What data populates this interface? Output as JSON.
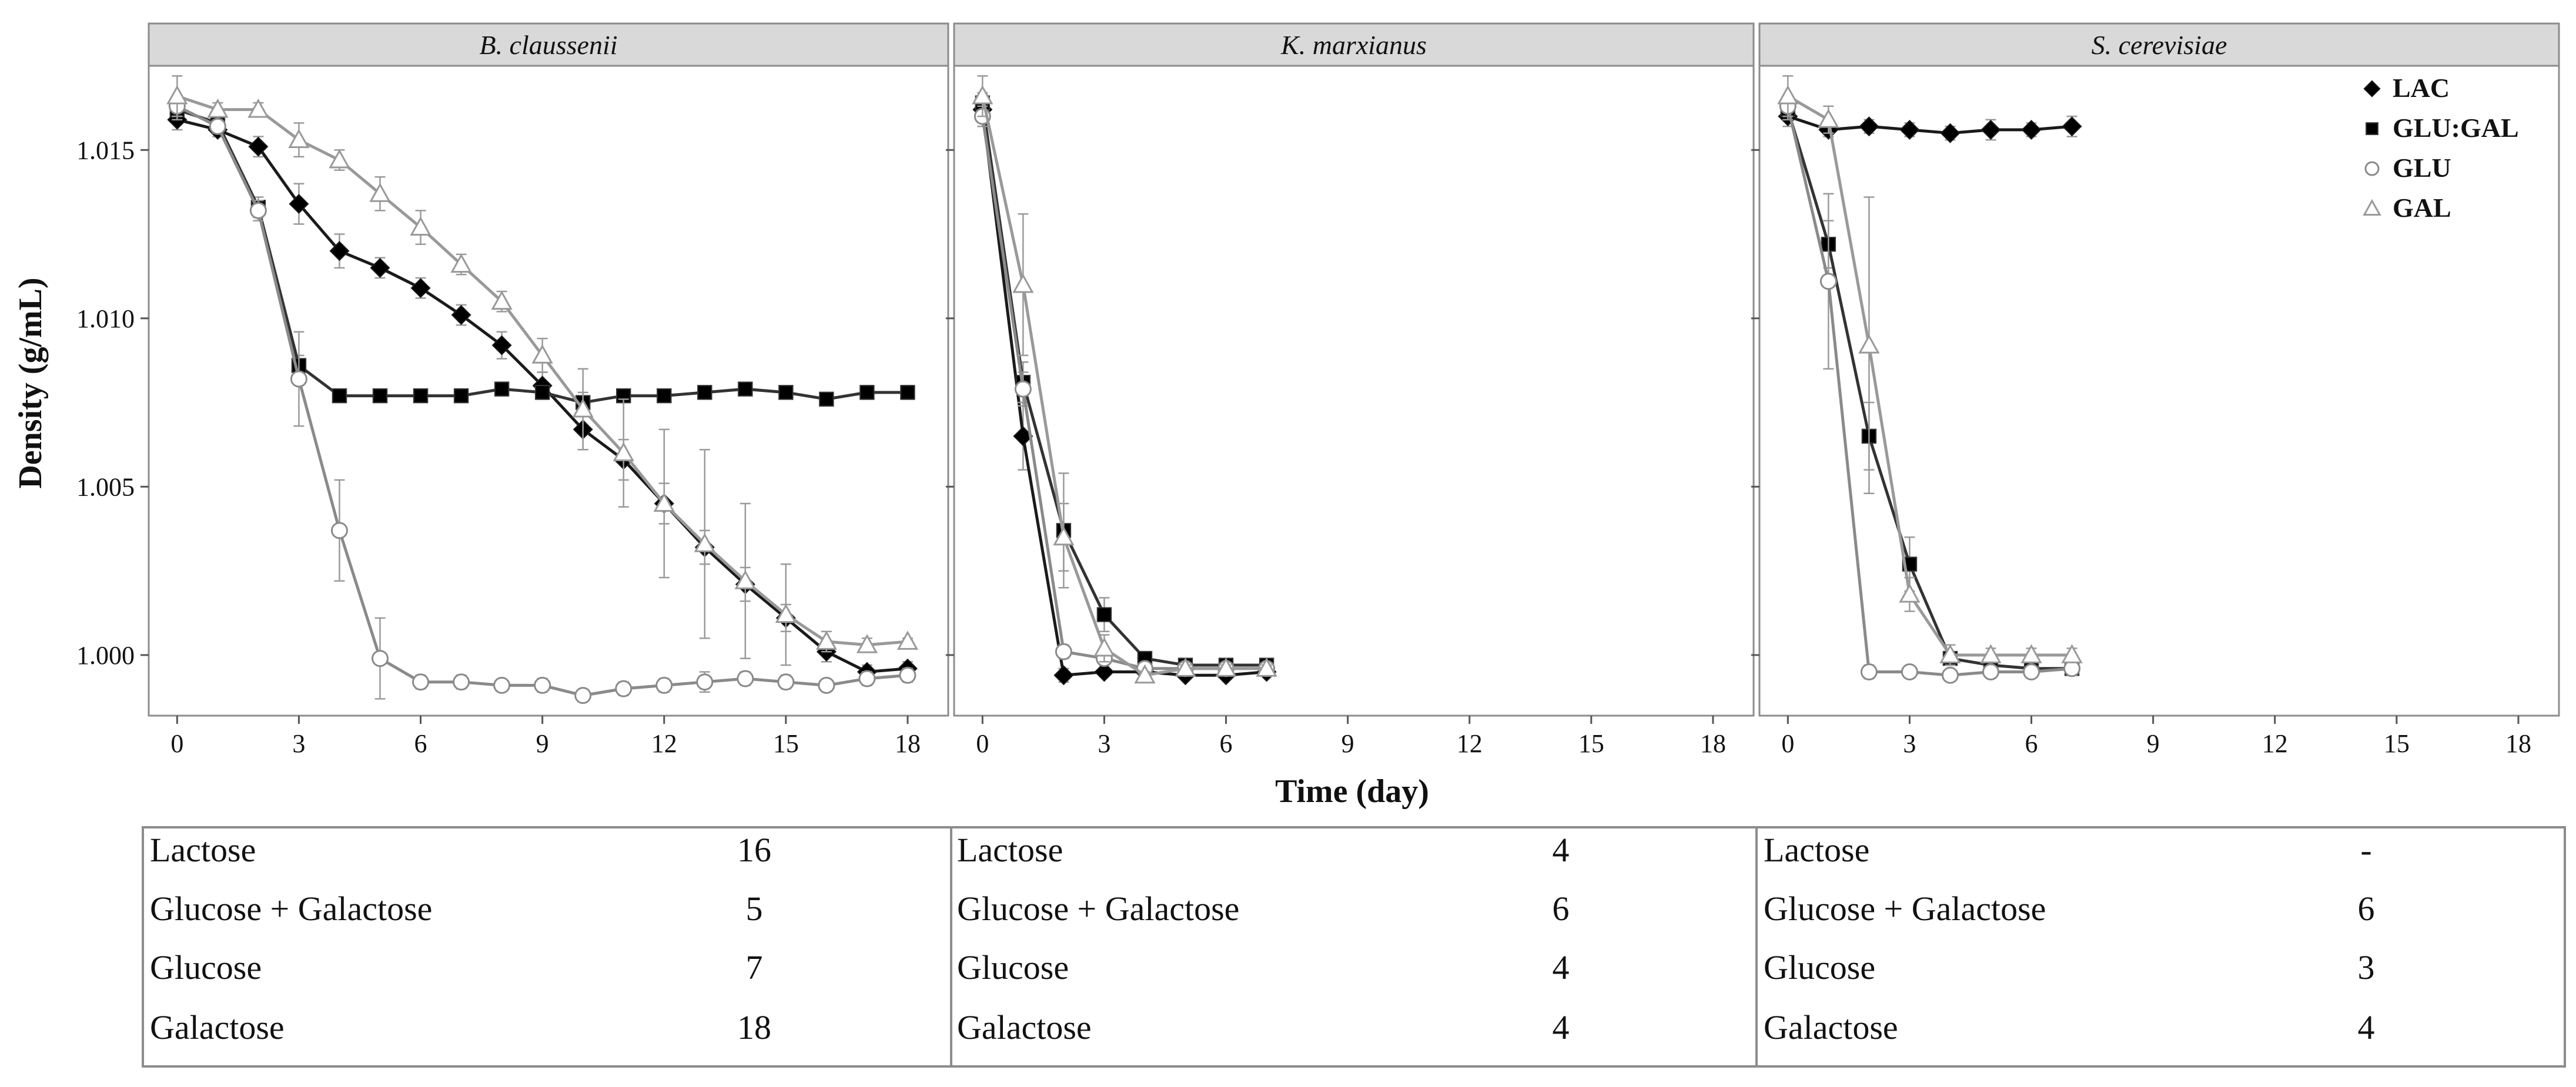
{
  "chart_data": {
    "type": "line",
    "ylabel": "Density (g/mL)",
    "xlabel": "Time (day)",
    "xlim": [
      -0.7,
      19
    ],
    "ylim": [
      0.9982,
      1.0175
    ],
    "x_ticks": [
      0,
      3,
      6,
      9,
      12,
      15,
      18
    ],
    "y_ticks": [
      1.0,
      1.005,
      1.01,
      1.015
    ],
    "y_tick_labels": [
      "1.000",
      "1.005",
      "1.010",
      "1.015"
    ],
    "legend": {
      "position": "top-right",
      "entries": [
        {
          "label": "LAC",
          "marker": "diamond",
          "color": "#000000"
        },
        {
          "label": "GLU:GAL",
          "marker": "square",
          "color": "#000000"
        },
        {
          "label": "GLU",
          "marker": "circle-open",
          "color": "#707070"
        },
        {
          "label": "GAL",
          "marker": "triangle-open",
          "color": "#808080"
        }
      ]
    },
    "panels": [
      {
        "title": "B. claussenii",
        "series": [
          {
            "name": "LAC",
            "x": [
              0,
              1,
              2,
              3,
              4,
              5,
              6,
              7,
              8,
              9,
              10,
              11,
              12,
              13,
              14,
              15,
              16,
              17,
              18
            ],
            "y": [
              1.0159,
              1.0156,
              1.0151,
              1.0134,
              1.012,
              1.0115,
              1.0109,
              1.0101,
              1.0092,
              1.008,
              1.0067,
              1.0058,
              1.0045,
              1.0032,
              1.0021,
              1.0011,
              1.0001,
              0.9995,
              0.9996
            ],
            "err": [
              0.0003,
              0.0002,
              0.0003,
              0.0006,
              0.0005,
              0.0003,
              0.0003,
              0.0003,
              0.0004,
              0.0004,
              0.0006,
              0.0006,
              0.0006,
              0.0005,
              0.0005,
              0.0004,
              0.0003,
              0.0002,
              0.0002
            ]
          },
          {
            "name": "GLU:GAL",
            "x": [
              0,
              1,
              2,
              3,
              4,
              5,
              6,
              7,
              8,
              9,
              10,
              11,
              12,
              13,
              14,
              15,
              16,
              17,
              18
            ],
            "y": [
              1.0162,
              1.0158,
              1.0133,
              1.0086,
              1.0077,
              1.0077,
              1.0077,
              1.0077,
              1.0079,
              1.0078,
              1.0075,
              1.0077,
              1.0077,
              1.0078,
              1.0079,
              1.0078,
              1.0076,
              1.0078,
              1.0078
            ],
            "err": [
              0.0003,
              0.0002,
              0.0003,
              0.0003,
              0.0001,
              0.0001,
              0.0001,
              0.0002,
              0.0002,
              0.0002,
              0.0003,
              0.0002,
              0.0001,
              0.0001,
              0.0001,
              0.0001,
              0.0001,
              0.0002,
              0.0002
            ]
          },
          {
            "name": "GLU",
            "x": [
              0,
              1,
              2,
              3,
              4,
              5,
              6,
              7,
              8,
              9,
              10,
              11,
              12,
              13,
              14,
              15,
              16,
              17,
              18
            ],
            "y": [
              1.0163,
              1.0157,
              1.0132,
              1.0082,
              1.0037,
              0.9999,
              0.9992,
              0.9992,
              0.9991,
              0.9991,
              0.9988,
              0.999,
              0.9991,
              0.9992,
              0.9993,
              0.9992,
              0.9991,
              0.9993,
              0.9994
            ],
            "err": [
              0.0003,
              0.0002,
              0.0003,
              0.0014,
              0.0015,
              0.0012,
              0.0002,
              0.0002,
              0.0001,
              0.0002,
              0.0001,
              0.0002,
              0.0002,
              0.0003,
              0.0002,
              0.0002,
              0.0001,
              0.0002,
              0.0002
            ]
          },
          {
            "name": "GAL",
            "x": [
              0,
              1,
              2,
              3,
              4,
              5,
              6,
              7,
              8,
              9,
              10,
              11,
              12,
              13,
              14,
              15,
              16,
              17,
              18
            ],
            "y": [
              1.0166,
              1.0162,
              1.0162,
              1.0153,
              1.0147,
              1.0137,
              1.0127,
              1.0116,
              1.0105,
              1.0089,
              1.0073,
              1.006,
              1.0045,
              1.0033,
              1.0022,
              1.0012,
              1.0004,
              1.0003,
              1.0004
            ],
            "err": [
              0.0006,
              0.0002,
              0.0002,
              0.0005,
              0.0003,
              0.0005,
              0.0005,
              0.0003,
              0.0003,
              0.0005,
              0.0012,
              0.0016,
              0.0022,
              0.0028,
              0.0023,
              0.0015,
              0.0003,
              0.0002,
              0.0001
            ]
          }
        ],
        "table": [
          {
            "label": "Lactose",
            "value": "16"
          },
          {
            "label": "Glucose + Galactose",
            "value": "5"
          },
          {
            "label": "Glucose",
            "value": "7"
          },
          {
            "label": "Galactose",
            "value": "18"
          }
        ]
      },
      {
        "title": "K. marxianus",
        "series": [
          {
            "name": "LAC",
            "x": [
              0,
              1,
              2,
              3,
              4,
              5,
              6,
              7
            ],
            "y": [
              1.0162,
              1.0065,
              0.9994,
              0.9995,
              0.9995,
              0.9994,
              0.9994,
              0.9995
            ],
            "err": [
              0.0003,
              0.001,
              0.0002,
              0.0001,
              0.0001,
              0.0001,
              0.0001,
              0.0001
            ]
          },
          {
            "name": "GLU:GAL",
            "x": [
              0,
              1,
              2,
              3,
              4,
              5,
              6,
              7
            ],
            "y": [
              1.0164,
              1.0081,
              1.0037,
              1.0012,
              0.9999,
              0.9997,
              0.9997,
              0.9997
            ],
            "err": [
              0.0003,
              0.0006,
              0.0017,
              0.0005,
              0.0002,
              0.0001,
              0.0001,
              0.0001
            ]
          },
          {
            "name": "GLU",
            "x": [
              0,
              1,
              2,
              3,
              4,
              5,
              6,
              7
            ],
            "y": [
              1.016,
              1.0079,
              1.0001,
              0.9999,
              0.9996,
              0.9996,
              0.9996,
              0.9996
            ],
            "err": [
              0.0003,
              0.0005,
              0.0002,
              0.0002,
              0.0001,
              0.0001,
              0.0001,
              0.0001
            ]
          },
          {
            "name": "GAL",
            "x": [
              0,
              1,
              2,
              3,
              4,
              5,
              6,
              7
            ],
            "y": [
              1.0166,
              1.011,
              1.0035,
              1.0002,
              0.9994,
              0.9996,
              0.9996,
              0.9996
            ],
            "err": [
              0.0006,
              0.0021,
              0.001,
              0.0004,
              0.0001,
              0.0001,
              0.0001,
              0.0001
            ]
          }
        ],
        "table": [
          {
            "label": "Lactose",
            "value": "4"
          },
          {
            "label": "Glucose + Galactose",
            "value": "6"
          },
          {
            "label": "Glucose",
            "value": "4"
          },
          {
            "label": "Galactose",
            "value": "4"
          }
        ]
      },
      {
        "title": "S. cerevisiae",
        "series": [
          {
            "name": "LAC",
            "x": [
              0,
              1,
              2,
              3,
              4,
              5,
              6,
              7
            ],
            "y": [
              1.016,
              1.0156,
              1.0157,
              1.0156,
              1.0155,
              1.0156,
              1.0156,
              1.0157
            ],
            "err": [
              0.0003,
              0.0002,
              0.0002,
              0.0002,
              0.0002,
              0.0003,
              0.0002,
              0.0003
            ]
          },
          {
            "name": "GLU:GAL",
            "x": [
              0,
              1,
              2,
              3,
              4,
              5,
              6,
              7
            ],
            "y": [
              1.0162,
              1.0122,
              1.0065,
              1.0027,
              0.9999,
              0.9997,
              0.9996,
              0.9996
            ],
            "err": [
              0.0003,
              0.0007,
              0.001,
              0.0008,
              0.0002,
              0.0001,
              0.0001,
              0.0002
            ]
          },
          {
            "name": "GLU",
            "x": [
              0,
              1,
              2,
              3,
              4,
              5,
              6,
              7
            ],
            "y": [
              1.0163,
              1.0111,
              0.9995,
              0.9995,
              0.9994,
              0.9995,
              0.9995,
              0.9996
            ],
            "err": [
              0.0003,
              0.0026,
              0.0002,
              0.0001,
              0.0001,
              0.0001,
              0.0001,
              0.0001
            ]
          },
          {
            "name": "GAL",
            "x": [
              0,
              1,
              2,
              3,
              4,
              5,
              6,
              7
            ],
            "y": [
              1.0166,
              1.0159,
              1.0092,
              1.0018,
              1.0,
              1.0,
              1.0,
              1.0
            ],
            "err": [
              0.0006,
              0.0004,
              0.0044,
              0.0005,
              0.0003,
              0.0002,
              0.0002,
              0.0002
            ]
          }
        ],
        "table": [
          {
            "label": "Lactose",
            "value": "-"
          },
          {
            "label": "Glucose + Galactose",
            "value": "6"
          },
          {
            "label": "Glucose",
            "value": "3"
          },
          {
            "label": "Galactose",
            "value": "4"
          }
        ]
      }
    ]
  }
}
